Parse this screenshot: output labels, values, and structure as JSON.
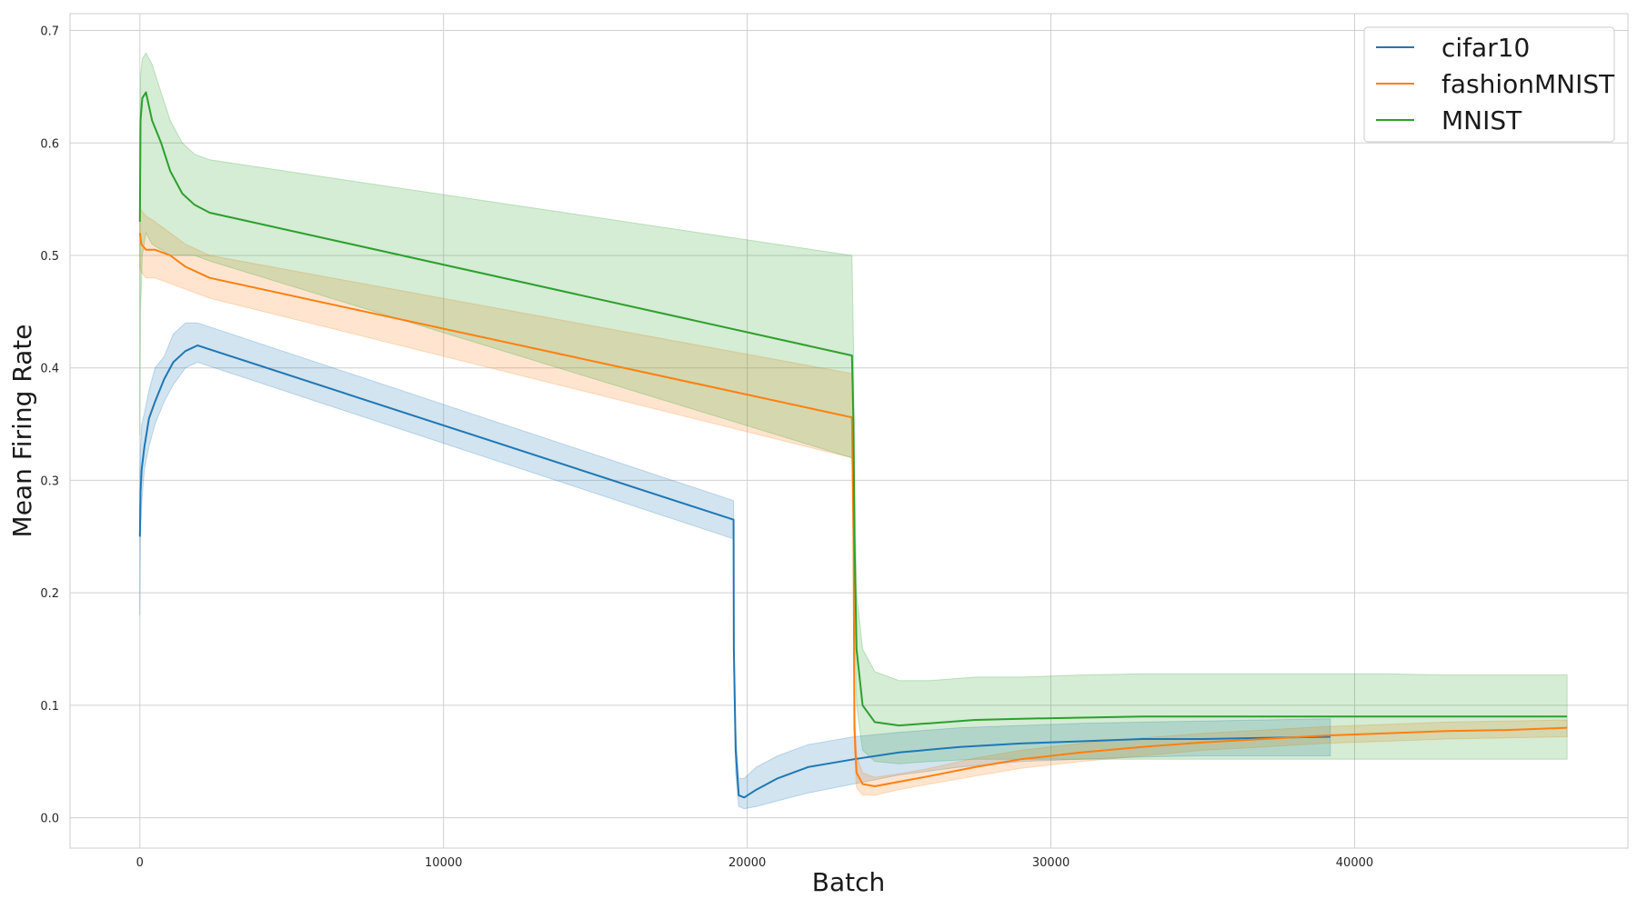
{
  "chart_data": {
    "type": "line",
    "title": "",
    "xlabel": "Batch",
    "ylabel": "Mean Firing Rate",
    "xlim": [
      -2300,
      49000
    ],
    "ylim": [
      -0.027,
      0.715
    ],
    "xticks": [
      0,
      10000,
      20000,
      30000,
      40000
    ],
    "xtick_labels": [
      "0",
      "10000",
      "20000",
      "30000",
      "40000"
    ],
    "yticks": [
      0.0,
      0.1,
      0.2,
      0.3,
      0.4,
      0.5,
      0.6,
      0.7
    ],
    "ytick_labels": [
      "0.0",
      "0.1",
      "0.2",
      "0.3",
      "0.4",
      "0.5",
      "0.6",
      "0.7"
    ],
    "grid": true,
    "legend_position": "top-right",
    "series": [
      {
        "name": "cifar10",
        "color": "#1f77b4",
        "x": [
          0,
          20,
          60,
          150,
          300,
          500,
          800,
          1100,
          1500,
          1900,
          19550,
          19560,
          19620,
          19720,
          19900,
          20300,
          21000,
          22000,
          23500,
          25000,
          27000,
          29000,
          31000,
          33000,
          35000,
          37000,
          39200
        ],
        "y": [
          0.25,
          0.29,
          0.31,
          0.33,
          0.355,
          0.37,
          0.39,
          0.405,
          0.415,
          0.42,
          0.265,
          0.15,
          0.06,
          0.02,
          0.018,
          0.025,
          0.035,
          0.045,
          0.052,
          0.058,
          0.063,
          0.066,
          0.068,
          0.07,
          0.07,
          0.071,
          0.072
        ],
        "lower": [
          0.18,
          0.25,
          0.28,
          0.31,
          0.33,
          0.35,
          0.37,
          0.385,
          0.4,
          0.405,
          0.248,
          0.13,
          0.04,
          0.01,
          0.008,
          0.01,
          0.015,
          0.022,
          0.03,
          0.038,
          0.045,
          0.05,
          0.052,
          0.054,
          0.055,
          0.055,
          0.055
        ],
        "upper": [
          0.31,
          0.33,
          0.35,
          0.36,
          0.38,
          0.4,
          0.41,
          0.43,
          0.44,
          0.44,
          0.282,
          0.17,
          0.08,
          0.035,
          0.035,
          0.045,
          0.055,
          0.065,
          0.072,
          0.076,
          0.08,
          0.082,
          0.084,
          0.085,
          0.086,
          0.087,
          0.088
        ]
      },
      {
        "name": "fashionMNIST",
        "color": "#ff7f0e",
        "x": [
          0,
          50,
          200,
          500,
          1000,
          1500,
          2300,
          23450,
          23500,
          23530,
          23600,
          23800,
          24200,
          25000,
          26000,
          27500,
          29000,
          31000,
          33000,
          35000,
          37000,
          39000,
          41000,
          43000,
          45000,
          47000
        ],
        "y": [
          0.52,
          0.51,
          0.505,
          0.505,
          0.5,
          0.49,
          0.48,
          0.356,
          0.25,
          0.08,
          0.04,
          0.03,
          0.028,
          0.032,
          0.037,
          0.045,
          0.052,
          0.058,
          0.063,
          0.067,
          0.07,
          0.073,
          0.075,
          0.077,
          0.078,
          0.08
        ],
        "lower": [
          0.49,
          0.485,
          0.48,
          0.48,
          0.475,
          0.47,
          0.462,
          0.32,
          0.22,
          0.06,
          0.027,
          0.02,
          0.02,
          0.025,
          0.03,
          0.037,
          0.044,
          0.05,
          0.055,
          0.06,
          0.063,
          0.066,
          0.068,
          0.07,
          0.071,
          0.072
        ],
        "upper": [
          0.545,
          0.54,
          0.535,
          0.53,
          0.52,
          0.51,
          0.5,
          0.395,
          0.28,
          0.1,
          0.055,
          0.04,
          0.036,
          0.039,
          0.044,
          0.053,
          0.06,
          0.066,
          0.071,
          0.075,
          0.078,
          0.081,
          0.083,
          0.085,
          0.086,
          0.087
        ]
      },
      {
        "name": "MNIST",
        "color": "#2ca02c",
        "x": [
          0,
          20,
          80,
          200,
          400,
          700,
          1000,
          1400,
          1800,
          2300,
          23450,
          23500,
          23530,
          23600,
          23800,
          24200,
          25000,
          26000,
          27500,
          29000,
          31000,
          33000,
          35000,
          37000,
          39000,
          41000,
          43000,
          45000,
          47000
        ],
        "y": [
          0.53,
          0.62,
          0.64,
          0.645,
          0.62,
          0.6,
          0.575,
          0.555,
          0.545,
          0.538,
          0.411,
          0.35,
          0.25,
          0.15,
          0.1,
          0.085,
          0.082,
          0.084,
          0.087,
          0.088,
          0.089,
          0.09,
          0.09,
          0.09,
          0.09,
          0.09,
          0.09,
          0.09,
          0.09
        ],
        "lower": [
          0.34,
          0.45,
          0.5,
          0.52,
          0.51,
          0.505,
          0.5,
          0.5,
          0.5,
          0.495,
          0.32,
          0.25,
          0.18,
          0.1,
          0.06,
          0.05,
          0.048,
          0.05,
          0.052,
          0.052,
          0.052,
          0.052,
          0.052,
          0.052,
          0.052,
          0.052,
          0.052,
          0.052,
          0.052
        ],
        "upper": [
          0.6,
          0.66,
          0.675,
          0.68,
          0.67,
          0.645,
          0.62,
          0.6,
          0.59,
          0.585,
          0.5,
          0.42,
          0.32,
          0.2,
          0.15,
          0.13,
          0.122,
          0.122,
          0.125,
          0.125,
          0.127,
          0.128,
          0.128,
          0.128,
          0.128,
          0.128,
          0.127,
          0.127,
          0.127
        ]
      }
    ]
  }
}
